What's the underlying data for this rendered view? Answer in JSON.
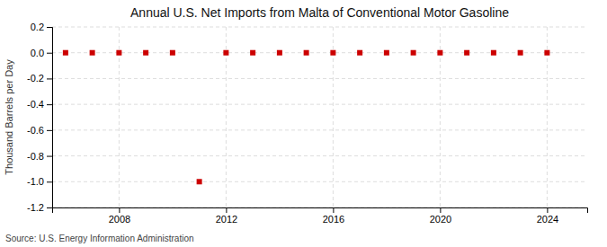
{
  "chart_data": {
    "type": "scatter",
    "title": "Annual U.S. Net Imports from Malta of Conventional Motor Gasoline",
    "ylabel": "Thousand Barrels per Day",
    "source": "Source: U.S. Energy Information Administration",
    "x": [
      2006,
      2007,
      2008,
      2009,
      2010,
      2011,
      2012,
      2013,
      2014,
      2015,
      2016,
      2017,
      2018,
      2019,
      2020,
      2021,
      2022,
      2023,
      2024
    ],
    "values": [
      0.0,
      0.0,
      0.0,
      0.0,
      0.0,
      -1.0,
      0.0,
      0.0,
      0.0,
      0.0,
      0.0,
      0.0,
      0.0,
      0.0,
      0.0,
      0.0,
      0.0,
      0.0,
      0.0
    ],
    "color": "#cc0000",
    "marker": "square",
    "xlim": [
      2005.5,
      2025.5
    ],
    "xticks": [
      2008,
      2012,
      2016,
      2020,
      2024
    ],
    "ylim": [
      -1.2,
      0.2
    ],
    "yticks": [
      0.2,
      {
        "value": 0,
        "label": "0.0"
      },
      -0.2,
      -0.4,
      -0.6,
      -0.8,
      {
        "value": -1,
        "label": "-1.0"
      },
      -1.2
    ],
    "grid": true
  }
}
